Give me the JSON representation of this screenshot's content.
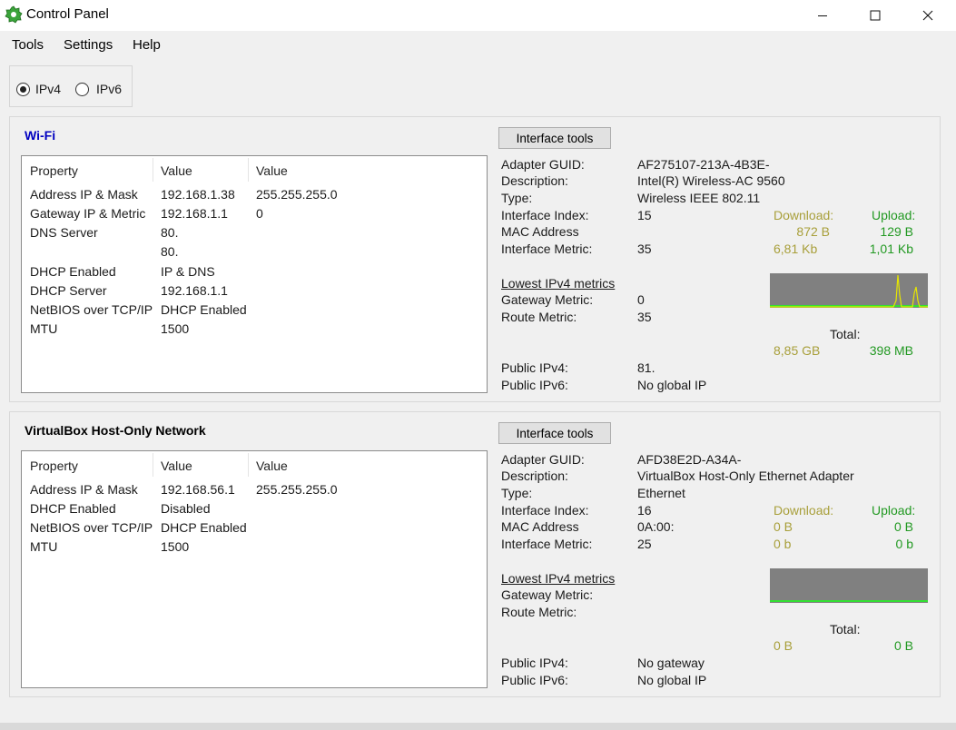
{
  "window": {
    "title": "Control Panel"
  },
  "menu": [
    "Tools",
    "Settings",
    "Help"
  ],
  "ip_mode": {
    "options": [
      "IPv4",
      "IPv6"
    ],
    "selected": "IPv4"
  },
  "colors": {
    "download": "#a89f3a",
    "upload": "#229922",
    "graph_bg": "#808080",
    "graph_line_baseline": "#19ff19",
    "graph_spike": "#e6e600",
    "title_wifi": "#0000c0"
  },
  "wifi": {
    "title": "Wi-Fi",
    "headers": [
      "Property",
      "Value",
      "Value"
    ],
    "rows": [
      [
        "Address IP & Mask",
        "192.168.1.38",
        "255.255.255.0"
      ],
      [
        "Gateway IP & Metric",
        "192.168.1.1",
        "0"
      ],
      [
        "DNS Server",
        "80.",
        ""
      ],
      [
        "",
        "80.",
        ""
      ],
      [
        "DHCP Enabled",
        "IP & DNS",
        ""
      ],
      [
        "DHCP Server",
        "192.168.1.1",
        ""
      ],
      [
        "NetBIOS over TCP/IP",
        "DHCP Enabled",
        ""
      ],
      [
        "MTU",
        "1500",
        ""
      ]
    ],
    "tools_button": "Interface tools",
    "adapter_guid_label": "Adapter GUID:",
    "adapter_guid": "AF275107-213A-4B3E-",
    "description_label": "Description:",
    "description": "Intel(R) Wireless-AC 9560",
    "type_label": "Type:",
    "type": "Wireless IEEE 802.11",
    "index_label": "Interface Index:",
    "index": "15",
    "mac_label": "MAC Address",
    "mac": "",
    "metric_label": "Interface Metric:",
    "metric": "35",
    "download_label": "Download:",
    "upload_label": "Upload:",
    "download_rate": "872 B",
    "upload_rate": "129 B",
    "download_kb": "6,81 Kb",
    "upload_kb": "1,01 Kb",
    "lowest_label": "Lowest IPv4 metrics",
    "gateway_metric_label": "Gateway Metric:",
    "gateway_metric": "0",
    "route_metric_label": "Route Metric:",
    "route_metric": "35",
    "total_label": "Total:",
    "total_download": "8,85 GB",
    "total_upload": "398 MB",
    "public_ipv4_label": "Public IPv4:",
    "public_ipv4": "81.",
    "public_ipv6_label": "Public IPv6:",
    "public_ipv6": "No global IP"
  },
  "vbox": {
    "title": "VirtualBox Host-Only Network",
    "headers": [
      "Property",
      "Value",
      "Value"
    ],
    "rows": [
      [
        "Address IP & Mask",
        "192.168.56.1",
        "255.255.255.0"
      ],
      [
        "DHCP Enabled",
        "Disabled",
        ""
      ],
      [
        "NetBIOS over TCP/IP",
        "DHCP Enabled",
        ""
      ],
      [
        "MTU",
        "1500",
        ""
      ]
    ],
    "tools_button": "Interface tools",
    "adapter_guid_label": "Adapter GUID:",
    "adapter_guid": "AFD38E2D-A34A-",
    "description_label": "Description:",
    "description": "VirtualBox Host-Only Ethernet Adapter",
    "type_label": "Type:",
    "type": "Ethernet",
    "index_label": "Interface Index:",
    "index": "16",
    "mac_label": "MAC Address",
    "mac": "0A:00:",
    "metric_label": "Interface Metric:",
    "metric": "25",
    "download_label": "Download:",
    "upload_label": "Upload:",
    "download_rate": "0 B",
    "upload_rate": "0 B",
    "download_kb": "0 b",
    "upload_kb": "0 b",
    "lowest_label": "Lowest IPv4 metrics",
    "gateway_metric_label": "Gateway Metric:",
    "gateway_metric": "",
    "route_metric_label": "Route Metric:",
    "route_metric": "",
    "total_label": "Total:",
    "total_download": "0 B",
    "total_upload": "0 B",
    "public_ipv4_label": "Public IPv4:",
    "public_ipv4": "No gateway",
    "public_ipv6_label": "Public IPv6:",
    "public_ipv6": "No global IP"
  }
}
